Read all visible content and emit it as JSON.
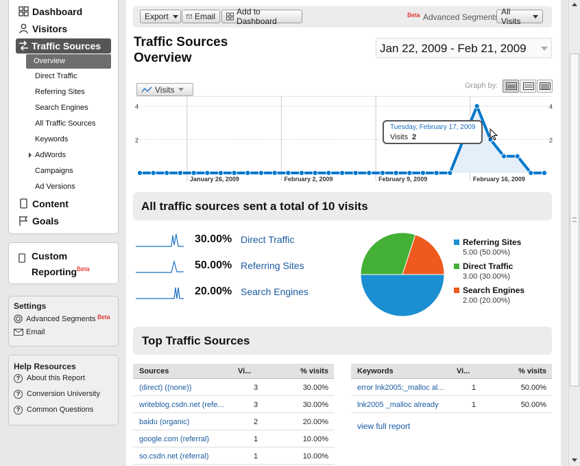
{
  "sidebar": {
    "nav": [
      {
        "label": "Dashboard"
      },
      {
        "label": "Visitors"
      },
      {
        "label": "Traffic Sources"
      },
      {
        "label": "Content"
      },
      {
        "label": "Goals"
      }
    ],
    "sub_items": [
      {
        "label": "Overview"
      },
      {
        "label": "Direct Traffic"
      },
      {
        "label": "Referring Sites"
      },
      {
        "label": "Search Engines"
      },
      {
        "label": "All Traffic Sources"
      },
      {
        "label": "Keywords"
      },
      {
        "label": "AdWords"
      },
      {
        "label": "Campaigns"
      },
      {
        "label": "Ad Versions"
      }
    ],
    "custom_reporting": {
      "line1": "Custom",
      "line2": "Reporting",
      "badge": "Beta"
    },
    "settings": {
      "title": "Settings",
      "advanced_segments": "Advanced Segments",
      "badge": "Beta",
      "email": "Email"
    },
    "help": {
      "title": "Help Resources",
      "items": [
        {
          "label": "About this Report"
        },
        {
          "label": "Conversion University"
        },
        {
          "label": "Common Questions"
        }
      ]
    }
  },
  "toolbar": {
    "export": "Export",
    "email": "Email",
    "add_dashboard": "Add to Dashboard",
    "beta": "Beta",
    "segments_label": "Advanced Segments:",
    "segments_value": "All Visits"
  },
  "page": {
    "title_line1": "Traffic Sources",
    "title_line2": "Overview",
    "date_range": "Jan 22, 2009 - Feb 21, 2009"
  },
  "graph": {
    "metric": "Visits",
    "graph_by": "Graph by:",
    "tooltip_date": "Tuesday, February 17, 2009",
    "tooltip_label": "Visits",
    "tooltip_value": "2"
  },
  "chart_data": [
    {
      "type": "line",
      "x": [
        "Jan 22",
        "Jan 23",
        "Jan 24",
        "Jan 25",
        "Jan 26",
        "Jan 27",
        "Jan 28",
        "Jan 29",
        "Jan 30",
        "Jan 31",
        "Feb 1",
        "Feb 2",
        "Feb 3",
        "Feb 4",
        "Feb 5",
        "Feb 6",
        "Feb 7",
        "Feb 8",
        "Feb 9",
        "Feb 10",
        "Feb 11",
        "Feb 12",
        "Feb 13",
        "Feb 14",
        "Feb 15",
        "Feb 16",
        "Feb 17",
        "Feb 18",
        "Feb 19",
        "Feb 20",
        "Feb 21"
      ],
      "series": [
        {
          "name": "Visits",
          "values": [
            0,
            0,
            0,
            0,
            0,
            0,
            0,
            0,
            0,
            0,
            0,
            0,
            0,
            0,
            0,
            0,
            0,
            0,
            0,
            0,
            0,
            0,
            0,
            0,
            2,
            4,
            2,
            1,
            1,
            0,
            0
          ]
        }
      ],
      "xtick_labels": [
        "January 26, 2009",
        "February 2, 2009",
        "February 9, 2009",
        "February 16, 2009"
      ],
      "yticks": [
        "4",
        "2"
      ],
      "ylim": [
        0,
        4.6
      ],
      "color": "#0077cc"
    },
    {
      "type": "pie",
      "title": "All traffic sources sent a total of 10 visits",
      "slices": [
        {
          "name": "Referring Sites",
          "value": 5,
          "label": "5.00 (50.00%)",
          "color": "#1b8fd1"
        },
        {
          "name": "Direct Traffic",
          "value": 3,
          "label": "3.00 (30.00%)",
          "color": "#44b035"
        },
        {
          "name": "Search Engines",
          "value": 2,
          "label": "2.00 (20.00%)",
          "color": "#ee5a1e"
        }
      ]
    }
  ],
  "summary": [
    {
      "pct": "30.00%",
      "name": "Direct Traffic"
    },
    {
      "pct": "50.00%",
      "name": "Referring Sites"
    },
    {
      "pct": "20.00%",
      "name": "Search Engines"
    }
  ],
  "top": {
    "title": "Top Traffic Sources",
    "sources": {
      "headers": [
        "Sources",
        "Vi...",
        "% visits"
      ],
      "rows": [
        {
          "name": "(direct) ((none))",
          "visits": "3",
          "pct": "30.00%"
        },
        {
          "name": "writeblog.csdn.net (refe...",
          "visits": "3",
          "pct": "30.00%"
        },
        {
          "name": "baidu (organic)",
          "visits": "2",
          "pct": "20.00%"
        },
        {
          "name": "google.com (referral)",
          "visits": "1",
          "pct": "10.00%"
        },
        {
          "name": "so.csdn.net (referral)",
          "visits": "1",
          "pct": "10.00%"
        }
      ]
    },
    "keywords": {
      "headers": [
        "Keywords",
        "Vi...",
        "% visits"
      ],
      "rows": [
        {
          "name": "error lnk2005:_malloc al...",
          "visits": "1",
          "pct": "50.00%"
        },
        {
          "name": "lnk2005 _malloc already",
          "visits": "1",
          "pct": "50.00%"
        }
      ],
      "full_report": "view full report"
    }
  }
}
